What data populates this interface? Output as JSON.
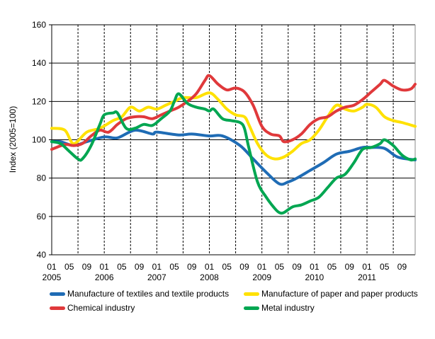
{
  "chart_data": {
    "type": "line",
    "title": "",
    "xlabel": "",
    "ylabel": "Index (2005=100)",
    "ylim": [
      40,
      160
    ],
    "yticks": [
      40,
      60,
      80,
      100,
      120,
      140,
      160
    ],
    "xrange": [
      "2005-01",
      "2011-12"
    ],
    "xtick_months": [
      "01",
      "05",
      "09"
    ],
    "years": [
      "2005",
      "2006",
      "2007",
      "2008",
      "2009",
      "2010",
      "2011"
    ],
    "grid": "horizontal solid, vertical dashed",
    "legend": "bottom",
    "series": [
      {
        "name": "Manufacture of textiles and textile products",
        "color": "#1f6cb5",
        "points": [
          [
            "2005-01",
            99
          ],
          [
            "2005-03",
            99
          ],
          [
            "2005-06",
            97
          ],
          [
            "2005-09",
            99
          ],
          [
            "2006-01",
            101.5
          ],
          [
            "2006-04",
            101
          ],
          [
            "2006-08",
            105
          ],
          [
            "2006-12",
            103
          ],
          [
            "2007-01",
            104
          ],
          [
            "2007-06",
            102.5
          ],
          [
            "2007-09",
            103
          ],
          [
            "2008-01",
            102
          ],
          [
            "2008-04",
            102
          ],
          [
            "2008-08",
            97
          ],
          [
            "2008-11",
            90
          ],
          [
            "2009-02",
            83
          ],
          [
            "2009-05",
            77
          ],
          [
            "2009-07",
            78
          ],
          [
            "2009-09",
            80
          ],
          [
            "2009-12",
            84
          ],
          [
            "2010-03",
            88
          ],
          [
            "2010-06",
            92.5
          ],
          [
            "2010-09",
            94
          ],
          [
            "2010-12",
            96
          ],
          [
            "2011-02",
            96
          ],
          [
            "2011-05",
            95.5
          ],
          [
            "2011-08",
            91
          ],
          [
            "2011-12",
            89.5
          ]
        ]
      },
      {
        "name": "Manufacture of paper and paper products",
        "color": "#ffe100",
        "points": [
          [
            "2005-01",
            106
          ],
          [
            "2005-04",
            105
          ],
          [
            "2005-06",
            98
          ],
          [
            "2005-09",
            104
          ],
          [
            "2005-12",
            106
          ],
          [
            "2006-03",
            110
          ],
          [
            "2006-05",
            112
          ],
          [
            "2006-07",
            117
          ],
          [
            "2006-09",
            115
          ],
          [
            "2006-11",
            117
          ],
          [
            "2007-01",
            116
          ],
          [
            "2007-03",
            118
          ],
          [
            "2007-05",
            120
          ],
          [
            "2007-07",
            122
          ],
          [
            "2007-10",
            122
          ],
          [
            "2008-01",
            124.5
          ],
          [
            "2008-03",
            121
          ],
          [
            "2008-05",
            116
          ],
          [
            "2008-07",
            113
          ],
          [
            "2008-09",
            112
          ],
          [
            "2008-10",
            108
          ],
          [
            "2008-12",
            98
          ],
          [
            "2009-02",
            92
          ],
          [
            "2009-04",
            90
          ],
          [
            "2009-06",
            91
          ],
          [
            "2009-08",
            94
          ],
          [
            "2009-10",
            98
          ],
          [
            "2009-12",
            100
          ],
          [
            "2010-02",
            105
          ],
          [
            "2010-04",
            112
          ],
          [
            "2010-06",
            118
          ],
          [
            "2010-08",
            116
          ],
          [
            "2010-10",
            115
          ],
          [
            "2010-12",
            117
          ],
          [
            "2011-01",
            118.5
          ],
          [
            "2011-03",
            117
          ],
          [
            "2011-05",
            112
          ],
          [
            "2011-07",
            110
          ],
          [
            "2011-09",
            109
          ],
          [
            "2011-12",
            107
          ]
        ]
      },
      {
        "name": "Chemical industry",
        "color": "#e0393b",
        "points": [
          [
            "2005-01",
            95
          ],
          [
            "2005-04",
            97.5
          ],
          [
            "2005-06",
            97
          ],
          [
            "2005-08",
            98
          ],
          [
            "2005-10",
            102
          ],
          [
            "2005-12",
            105
          ],
          [
            "2006-02",
            104
          ],
          [
            "2006-04",
            108
          ],
          [
            "2006-06",
            111
          ],
          [
            "2006-08",
            112
          ],
          [
            "2006-10",
            112
          ],
          [
            "2006-12",
            111
          ],
          [
            "2007-02",
            113
          ],
          [
            "2007-04",
            115
          ],
          [
            "2007-06",
            117
          ],
          [
            "2007-08",
            120
          ],
          [
            "2007-10",
            124
          ],
          [
            "2007-12",
            131
          ],
          [
            "2008-01",
            133.5
          ],
          [
            "2008-03",
            129
          ],
          [
            "2008-05",
            126
          ],
          [
            "2008-07",
            127
          ],
          [
            "2008-09",
            125
          ],
          [
            "2008-11",
            118
          ],
          [
            "2009-01",
            107
          ],
          [
            "2009-03",
            103
          ],
          [
            "2009-05",
            102
          ],
          [
            "2009-06",
            99
          ],
          [
            "2009-08",
            100
          ],
          [
            "2009-10",
            103
          ],
          [
            "2009-12",
            108
          ],
          [
            "2010-02",
            111
          ],
          [
            "2010-04",
            112
          ],
          [
            "2010-06",
            115
          ],
          [
            "2010-08",
            117
          ],
          [
            "2010-10",
            118
          ],
          [
            "2010-12",
            121
          ],
          [
            "2011-02",
            125
          ],
          [
            "2011-04",
            129
          ],
          [
            "2011-05",
            131
          ],
          [
            "2011-07",
            128
          ],
          [
            "2011-09",
            126
          ],
          [
            "2011-11",
            126.5
          ],
          [
            "2011-12",
            129
          ]
        ]
      },
      {
        "name": "Metal industry",
        "color": "#00a651",
        "points": [
          [
            "2005-01",
            99
          ],
          [
            "2005-03",
            98
          ],
          [
            "2005-05",
            94
          ],
          [
            "2005-07",
            90
          ],
          [
            "2005-08",
            90
          ],
          [
            "2005-10",
            97
          ],
          [
            "2005-12",
            108
          ],
          [
            "2006-01",
            113
          ],
          [
            "2006-03",
            114
          ],
          [
            "2006-04",
            114
          ],
          [
            "2006-06",
            106
          ],
          [
            "2006-08",
            106
          ],
          [
            "2006-10",
            108
          ],
          [
            "2006-12",
            107.5
          ],
          [
            "2007-02",
            111
          ],
          [
            "2007-04",
            115
          ],
          [
            "2007-05",
            120
          ],
          [
            "2007-06",
            124
          ],
          [
            "2007-08",
            119
          ],
          [
            "2007-10",
            117
          ],
          [
            "2007-12",
            116
          ],
          [
            "2008-01",
            115
          ],
          [
            "2008-02",
            116
          ],
          [
            "2008-04",
            111
          ],
          [
            "2008-06",
            110
          ],
          [
            "2008-08",
            109
          ],
          [
            "2008-09",
            106
          ],
          [
            "2008-10",
            96
          ],
          [
            "2008-12",
            78
          ],
          [
            "2009-02",
            70
          ],
          [
            "2009-04",
            64
          ],
          [
            "2009-05",
            62
          ],
          [
            "2009-06",
            62
          ],
          [
            "2009-08",
            65
          ],
          [
            "2009-10",
            66
          ],
          [
            "2009-12",
            68
          ],
          [
            "2010-02",
            70
          ],
          [
            "2010-04",
            75
          ],
          [
            "2010-06",
            80
          ],
          [
            "2010-08",
            82
          ],
          [
            "2010-10",
            88
          ],
          [
            "2010-12",
            95
          ],
          [
            "2011-02",
            96
          ],
          [
            "2011-04",
            98
          ],
          [
            "2011-05",
            100
          ],
          [
            "2011-07",
            97
          ],
          [
            "2011-09",
            92
          ],
          [
            "2011-11",
            89.5
          ],
          [
            "2011-12",
            90
          ]
        ]
      }
    ]
  }
}
